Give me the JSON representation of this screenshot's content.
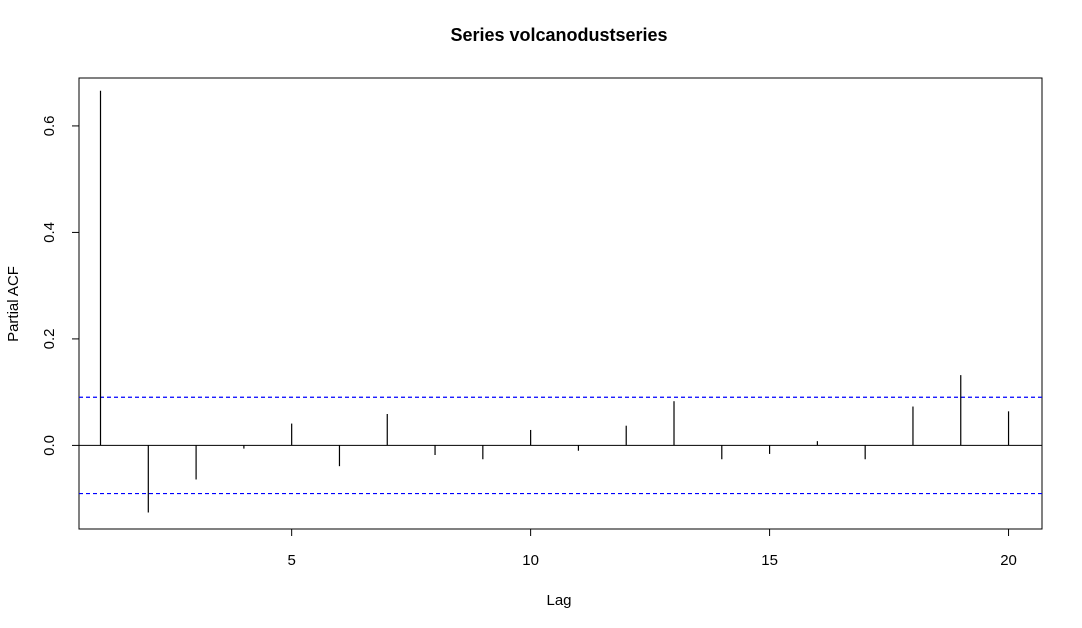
{
  "chart_data": {
    "type": "bar",
    "title": "Series  volcanodustseries",
    "xlabel": "Lag",
    "ylabel": "Partial ACF",
    "x": [
      1,
      2,
      3,
      4,
      5,
      6,
      7,
      8,
      9,
      10,
      11,
      12,
      13,
      14,
      15,
      16,
      17,
      18,
      19,
      20
    ],
    "values": [
      0.666,
      -0.126,
      -0.064,
      -0.006,
      0.041,
      -0.039,
      0.059,
      -0.018,
      -0.026,
      0.029,
      -0.01,
      0.037,
      0.083,
      -0.026,
      -0.016,
      0.008,
      -0.026,
      0.073,
      0.132,
      0.064
    ],
    "xlim": [
      0.55,
      20.7
    ],
    "ylim": [
      -0.157,
      0.69
    ],
    "x_ticks": [
      "5",
      "10",
      "15",
      "20"
    ],
    "y_ticks": [
      "0.0",
      "0.2",
      "0.4",
      "0.6"
    ],
    "confidence_bound": 0.0904,
    "bound_color": "#0000ff",
    "bar_color": "#000000",
    "grid": false
  }
}
